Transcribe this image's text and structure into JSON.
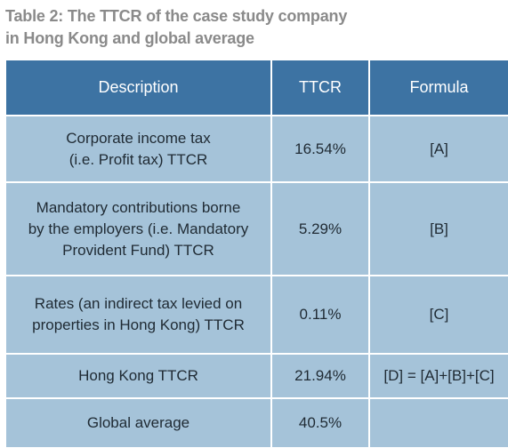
{
  "caption": {
    "line1": "Table 2: The TTCR of the case study company",
    "line2": "in Hong Kong and global average"
  },
  "table": {
    "headers": {
      "description": "Description",
      "ttcr": "TTCR",
      "formula": "Formula"
    },
    "rows": [
      {
        "description_lines": [
          "Corporate income tax",
          "(i.e. Profit tax) TTCR"
        ],
        "ttcr": "16.54%",
        "formula": "[A]"
      },
      {
        "description_lines": [
          "Mandatory contributions borne",
          "by the employers (i.e. Mandatory",
          "Provident Fund) TTCR"
        ],
        "ttcr": "5.29%",
        "formula": "[B]"
      },
      {
        "description_lines": [
          "Rates (an indirect tax levied on",
          "properties in Hong Kong) TTCR"
        ],
        "ttcr": "0.11%",
        "formula": "[C]"
      },
      {
        "description_lines": [
          "Hong Kong TTCR"
        ],
        "ttcr": "21.94%",
        "formula": "[D] = [A]+[B]+[C]"
      },
      {
        "description_lines": [
          "Global average"
        ],
        "ttcr": "40.5%",
        "formula": ""
      }
    ]
  },
  "colors": {
    "header_bg": "#3d73a3",
    "cell_bg": "#a5c3d9",
    "caption_text": "#8a8a8a"
  }
}
